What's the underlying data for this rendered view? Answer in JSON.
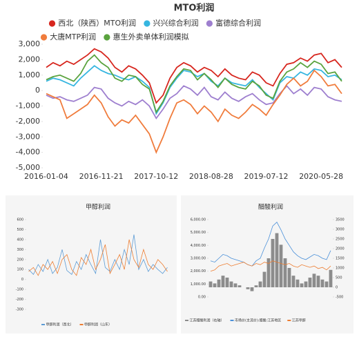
{
  "chart_data": [
    {
      "type": "line",
      "title": "MTO利润",
      "categories": [
        "2016-01-04",
        null,
        null,
        null,
        null,
        null,
        null,
        null,
        "2016-11-21",
        null,
        null,
        null,
        null,
        null,
        null,
        null,
        "2017-10-12",
        null,
        null,
        null,
        null,
        null,
        null,
        null,
        "2018-08-28",
        null,
        null,
        null,
        null,
        null,
        null,
        null,
        "2019-07-12",
        null,
        null,
        null,
        null,
        null,
        null,
        null,
        "2020-05-28",
        null,
        null,
        null
      ],
      "ylim": [
        -5000,
        3000
      ],
      "yticks": [
        {
          "value": -5000,
          "label": "-5,000"
        },
        {
          "value": -4000,
          "label": "-4,000"
        },
        {
          "value": -3000,
          "label": "-3,000"
        },
        {
          "value": -2000,
          "label": "-2,000"
        },
        {
          "value": -1000,
          "label": "-1,000"
        },
        0,
        {
          "value": 1000,
          "label": "1,000"
        },
        {
          "value": 2000,
          "label": "2,000"
        },
        {
          "value": 3000,
          "label": "3,000"
        }
      ],
      "series": [
        {
          "name": "西北（陕西）MTO利润",
          "color": "#d7261e",
          "values": [
            1500,
            1800,
            1600,
            1900,
            1700,
            2000,
            2300,
            2700,
            2500,
            2100,
            1500,
            1200,
            1600,
            1400,
            1000,
            500,
            -800,
            -300,
            800,
            1500,
            1800,
            1600,
            1200,
            1500,
            1300,
            900,
            1400,
            1000,
            800,
            700,
            1200,
            1000,
            500,
            300,
            1100,
            1700,
            1800,
            2100,
            1900,
            2300,
            2400,
            1800,
            2000,
            1500
          ]
        },
        {
          "name": "兴兴综合利润",
          "color": "#36b6e0",
          "values": [
            600,
            800,
            700,
            500,
            300,
            800,
            1200,
            1600,
            1300,
            1100,
            1000,
            800,
            700,
            900,
            600,
            200,
            -1500,
            -800,
            200,
            800,
            1300,
            1200,
            900,
            1100,
            600,
            300,
            800,
            500,
            400,
            300,
            700,
            200,
            -200,
            -600,
            500,
            900,
            800,
            1200,
            1000,
            1400,
            1300,
            900,
            1000,
            700
          ]
        },
        {
          "name": "富德综合利润",
          "color": "#9e7fcf",
          "values": [
            -300,
            -500,
            -400,
            -600,
            -700,
            -500,
            -300,
            200,
            100,
            -500,
            -800,
            -1000,
            -700,
            -900,
            -600,
            -1000,
            -1800,
            -1200,
            -500,
            -200,
            300,
            100,
            -300,
            200,
            -400,
            -600,
            -100,
            -500,
            -700,
            -400,
            -200,
            -600,
            -900,
            -800,
            -200,
            300,
            -200,
            100,
            -300,
            200,
            100,
            -400,
            -600,
            -700
          ]
        },
        {
          "name": "大唐MTP利润",
          "color": "#f07c3c",
          "values": [
            -200,
            -400,
            -600,
            -1800,
            -1500,
            -1200,
            -900,
            -300,
            -800,
            -1700,
            -2300,
            -1900,
            -2100,
            -1600,
            -2200,
            -2800,
            -4000,
            -3000,
            -1800,
            -800,
            -600,
            -900,
            -1500,
            -1000,
            -1400,
            -2000,
            -1200,
            -1600,
            -1800,
            -1400,
            -900,
            -1200,
            -1600,
            -900,
            -300,
            400,
            800,
            300,
            600,
            1300,
            900,
            300,
            400,
            -200
          ]
        },
        {
          "name": "惠生外卖单体利润模拟",
          "color": "#5aa33e",
          "values": [
            700,
            900,
            1000,
            800,
            600,
            1100,
            1900,
            2300,
            1800,
            1500,
            800,
            600,
            1000,
            900,
            400,
            100,
            -1400,
            -700,
            300,
            900,
            1400,
            1300,
            700,
            1100,
            700,
            200,
            800,
            400,
            200,
            100,
            600,
            300,
            -300,
            -500,
            600,
            1200,
            1400,
            1800,
            1500,
            1900,
            1700,
            1100,
            1200,
            600
          ]
        }
      ]
    },
    {
      "type": "line",
      "title": "甲醇利润",
      "categories": [
        null,
        null,
        null,
        null,
        null,
        null,
        null,
        null,
        null,
        null,
        null,
        null,
        null,
        null,
        null,
        null,
        null,
        null,
        null,
        null,
        null,
        null,
        null,
        null,
        null,
        null,
        null,
        null,
        null,
        null
      ],
      "ylim": [
        -300,
        600
      ],
      "yticks": [
        -300,
        -200,
        -100,
        0,
        100,
        200,
        300,
        400,
        500,
        600
      ],
      "series": [
        {
          "name": "甲醇利润（西北）",
          "color": "#5b9bd5",
          "values": [
            100,
            50,
            150,
            80,
            200,
            60,
            120,
            300,
            90,
            50,
            180,
            100,
            250,
            150,
            60,
            400,
            120,
            80,
            200,
            100,
            300,
            150,
            450,
            100,
            200,
            80,
            150,
            100,
            60,
            120
          ]
        },
        {
          "name": "甲醇利润（山东）",
          "color": "#ed7d31",
          "values": [
            80,
            120,
            40,
            150,
            100,
            180,
            60,
            200,
            250,
            100,
            40,
            220,
            150,
            300,
            100,
            200,
            350,
            60,
            150,
            250,
            100,
            400,
            200,
            120,
            300,
            150,
            100,
            200,
            150,
            80
          ]
        }
      ]
    },
    {
      "type": "combo",
      "title": "醋酸利润",
      "categories": [
        null,
        null,
        null,
        null,
        null,
        null,
        null,
        null,
        null,
        null,
        null,
        null,
        null,
        null,
        null,
        null,
        null,
        null,
        null,
        null,
        null,
        null,
        null,
        null,
        null,
        null,
        null,
        null,
        null,
        null
      ],
      "ylim": [
        0,
        6000
      ],
      "yticks": [
        {
          "value": 0,
          "label": "0.00"
        },
        {
          "value": 1000,
          "label": "1,000.00"
        },
        {
          "value": 2000,
          "label": "2,000.00"
        },
        {
          "value": 3000,
          "label": "3,000.00"
        },
        {
          "value": 4000,
          "label": "4,000.00"
        },
        {
          "value": 5000,
          "label": "5,000.00"
        },
        {
          "value": 6000,
          "label": "6,000.00"
        }
      ],
      "y2lim": [
        -500,
        3500
      ],
      "y2ticks": [
        -500,
        0,
        500,
        1000,
        1500,
        2000,
        2500,
        3000,
        3500
      ],
      "series": [
        {
          "name": "江苏醋酸利润（右轴）",
          "color": "#8c8c8c",
          "type": "bar",
          "axis": "y2",
          "values": [
            300,
            200,
            400,
            600,
            500,
            300,
            200,
            100,
            0,
            -100,
            -200,
            100,
            300,
            800,
            1500,
            2500,
            2800,
            2200,
            1500,
            1000,
            600,
            400,
            200,
            300,
            500,
            700,
            600,
            400,
            300,
            900
          ]
        },
        {
          "name": "市场价(主流价):醋酸:江苏地区",
          "color": "#4a90d9",
          "type": "line",
          "values": [
            2800,
            2700,
            3000,
            3300,
            3200,
            3000,
            2900,
            2800,
            2700,
            2500,
            2400,
            2800,
            3000,
            3800,
            4500,
            5500,
            5800,
            5200,
            4500,
            4000,
            3500,
            3200,
            3000,
            2900,
            3100,
            3300,
            3200,
            3000,
            2900,
            3600
          ]
        },
        {
          "name": "江苏甲醇",
          "color": "#ed7d31",
          "type": "line",
          "values": [
            2000,
            2100,
            2400,
            2500,
            2600,
            2400,
            2500,
            2600,
            2700,
            2500,
            2400,
            2600,
            2500,
            2700,
            2600,
            2800,
            2700,
            2600,
            2500,
            2600,
            2400,
            2300,
            2500,
            2400,
            2300,
            2400,
            2200,
            2300,
            2100,
            2400
          ]
        }
      ]
    }
  ]
}
